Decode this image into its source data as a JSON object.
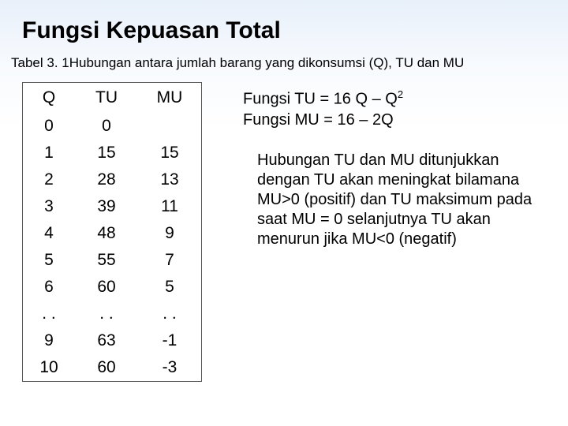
{
  "title": "Fungsi Kepuasan Total",
  "caption": "Tabel 3. 1Hubungan antara jumlah barang yang dikonsumsi (Q), TU dan MU",
  "table": {
    "headers": {
      "q": "Q",
      "tu": "TU",
      "mu": "MU"
    },
    "rows": [
      {
        "q": "0",
        "tu": "0",
        "mu": ""
      },
      {
        "q": "1",
        "tu": "15",
        "mu": "15"
      },
      {
        "q": "2",
        "tu": "28",
        "mu": "13"
      },
      {
        "q": "3",
        "tu": "39",
        "mu": "11"
      },
      {
        "q": "4",
        "tu": "48",
        "mu": "9"
      },
      {
        "q": "5",
        "tu": "55",
        "mu": "7"
      },
      {
        "q": "6",
        "tu": "60",
        "mu": "5"
      },
      {
        "q": ". .",
        "tu": ". .",
        "mu": ". ."
      },
      {
        "q": "9",
        "tu": "63",
        "mu": "-1"
      },
      {
        "q": "10",
        "tu": "60",
        "mu": "-3"
      }
    ]
  },
  "formula": {
    "line1_a": "Fungsi TU  = 16 Q – Q",
    "line1_sup": "2",
    "line2": "Fungsi MU = 16 – 2Q"
  },
  "description": "Hubungan TU dan MU ditunjukkan dengan TU akan meningkat bilamana MU>0 (positif) dan TU maksimum pada saat MU = 0 selanjutnya TU akan menurun jika MU<0 (negatif)"
}
